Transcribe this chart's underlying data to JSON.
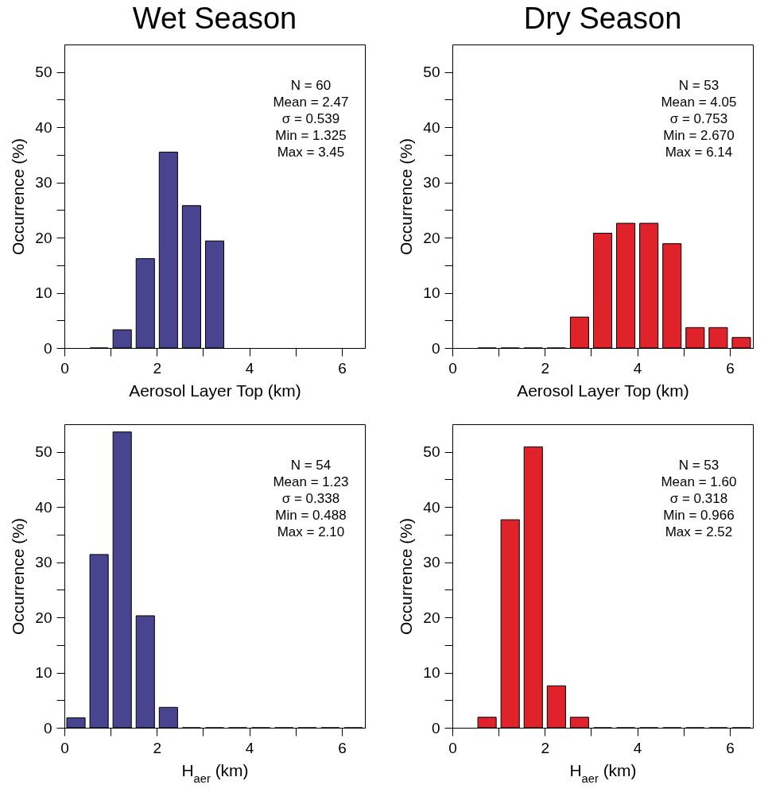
{
  "chart_data": [
    {
      "type": "histogram",
      "title": "Wet Season",
      "xlabel": "Aerosol Layer Top (km)",
      "ylabel": "Occurrence (%)",
      "color": "#48448f",
      "bins": [
        0.5,
        1,
        1.5,
        2,
        2.5,
        3,
        3.5
      ],
      "values": [
        0,
        3.3,
        16.2,
        35.5,
        25.8,
        19.4
      ],
      "xlim": [
        0,
        6.5
      ],
      "ylim": [
        0,
        55
      ],
      "xticks": [
        0,
        {
          "value": 1,
          "label": null
        },
        2,
        {
          "value": 3,
          "label": null
        },
        4,
        {
          "value": 5,
          "label": null
        },
        6
      ],
      "yticks": [
        0,
        {
          "value": 5,
          "label": null
        },
        10,
        {
          "value": 15,
          "label": null
        },
        20,
        {
          "value": 25,
          "label": null
        },
        30,
        {
          "value": 35,
          "label": null
        },
        40,
        {
          "value": 45,
          "label": null
        },
        50
      ],
      "annotations": [
        "N = 60",
        "Mean = 2.47",
        "σ = 0.539",
        "Min = 1.325",
        "Max = 3.45"
      ]
    },
    {
      "type": "histogram",
      "title": "Dry Season",
      "xlabel": "Aerosol Layer Top (km)",
      "ylabel": "Occurrence (%)",
      "color": "#e0222b",
      "bins": [
        0.5,
        1,
        1.5,
        2,
        2.5,
        3,
        3.5,
        4,
        4.5,
        5,
        5.5,
        6,
        6.5
      ],
      "values": [
        0,
        0,
        0,
        0,
        5.6,
        20.8,
        22.6,
        22.6,
        18.9,
        3.7,
        3.7,
        1.9
      ],
      "xlim": [
        0,
        6.5
      ],
      "ylim": [
        0,
        55
      ],
      "xticks": [
        0,
        {
          "value": 1,
          "label": null
        },
        2,
        {
          "value": 3,
          "label": null
        },
        4,
        {
          "value": 5,
          "label": null
        },
        6
      ],
      "yticks": [
        0,
        {
          "value": 5,
          "label": null
        },
        10,
        {
          "value": 15,
          "label": null
        },
        20,
        {
          "value": 25,
          "label": null
        },
        30,
        {
          "value": 35,
          "label": null
        },
        40,
        {
          "value": 45,
          "label": null
        },
        50
      ],
      "annotations": [
        "N = 53",
        "Mean = 4.05",
        "σ = 0.753",
        "Min = 2.670",
        "Max = 6.14"
      ]
    },
    {
      "type": "histogram",
      "xlabel": "H$_{aer}$ (km)",
      "ylabel": "Occurrence (%)",
      "color": "#48448f",
      "bins": [
        0,
        0.5,
        1,
        1.5,
        2,
        2.5,
        3,
        3.5,
        4,
        4.5,
        5,
        5.5,
        6,
        6.5
      ],
      "values": [
        1.8,
        31.4,
        53.6,
        20.3,
        3.7,
        0,
        0,
        0,
        0,
        0,
        0,
        0,
        0
      ],
      "xlim": [
        0,
        6.5
      ],
      "ylim": [
        0,
        55
      ],
      "xticks": [
        0,
        {
          "value": 1,
          "label": null
        },
        2,
        {
          "value": 3,
          "label": null
        },
        4,
        {
          "value": 5,
          "label": null
        },
        6
      ],
      "yticks": [
        0,
        {
          "value": 5,
          "label": null
        },
        10,
        {
          "value": 15,
          "label": null
        },
        20,
        {
          "value": 25,
          "label": null
        },
        30,
        {
          "value": 35,
          "label": null
        },
        40,
        {
          "value": 45,
          "label": null
        },
        50
      ],
      "annotations": [
        "N = 54",
        "Mean = 1.23",
        "σ = 0.338",
        "Min = 0.488",
        "Max = 2.10"
      ]
    },
    {
      "type": "histogram",
      "xlabel": "H$_{aer}$ (km)",
      "ylabel": "Occurrence (%)",
      "color": "#e0222b",
      "bins": [
        0.5,
        1,
        1.5,
        2,
        2.5,
        3,
        3.5,
        4,
        4.5,
        5,
        5.5,
        6,
        6.5
      ],
      "values": [
        1.9,
        37.7,
        50.9,
        7.6,
        1.9,
        0,
        0,
        0,
        0,
        0,
        0,
        0
      ],
      "xlim": [
        0,
        6.5
      ],
      "ylim": [
        0,
        55
      ],
      "xticks": [
        0,
        {
          "value": 1,
          "label": null
        },
        2,
        {
          "value": 3,
          "label": null
        },
        4,
        {
          "value": 5,
          "label": null
        },
        6
      ],
      "yticks": [
        0,
        {
          "value": 5,
          "label": null
        },
        10,
        {
          "value": 15,
          "label": null
        },
        20,
        {
          "value": 25,
          "label": null
        },
        30,
        {
          "value": 35,
          "label": null
        },
        40,
        {
          "value": 45,
          "label": null
        },
        50
      ],
      "annotations": [
        "N = 53",
        "Mean = 1.60",
        "σ = 0.318",
        "Min = 0.966",
        "Max = 2.52"
      ]
    }
  ]
}
